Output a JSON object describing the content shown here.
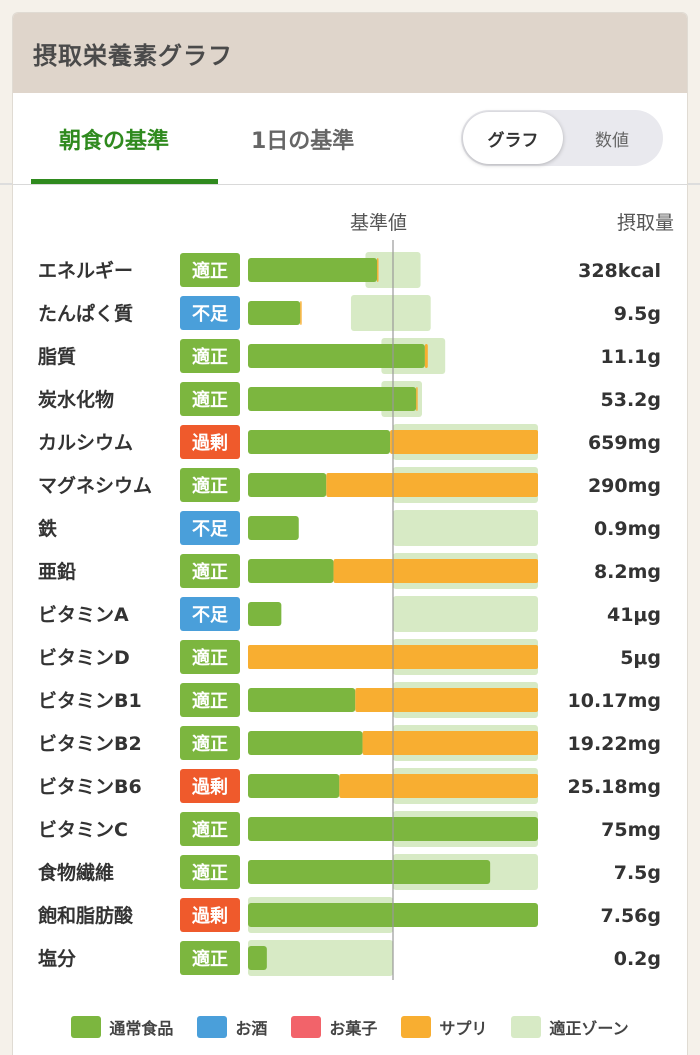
{
  "header": {
    "title": "摂取栄養素グラフ"
  },
  "tabs": [
    {
      "label": "朝食の基準",
      "active": true
    },
    {
      "label": "1日の基準",
      "active": false
    }
  ],
  "view_toggle": {
    "options": [
      "グラフ",
      "数値"
    ],
    "selected": "グラフ"
  },
  "colors": {
    "food": "#7cb63f",
    "alcohol": "#4a9fda",
    "snack": "#f2636a",
    "supplement": "#f8ae31",
    "zone": "#d7eac5",
    "accent": "#2f8a1e",
    "badge_ok": "#7cb63f",
    "badge_low": "#4a9fda",
    "badge_high": "#ef5a2c"
  },
  "chart_data": {
    "type": "bar",
    "orientation": "horizontal",
    "stacked": true,
    "reference_label": "基準値",
    "value_column_label": "摂取量",
    "reference_percent": 100,
    "xlim": [
      0,
      200
    ],
    "series": [
      {
        "name": "通常食品",
        "color": "#7cb63f"
      },
      {
        "name": "お酒",
        "color": "#4a9fda"
      },
      {
        "name": "お菓子",
        "color": "#f2636a"
      },
      {
        "name": "サプリ",
        "color": "#f8ae31"
      },
      {
        "name": "適正ゾーン",
        "color": "#d7eac5"
      }
    ],
    "rows": [
      {
        "name": "エネルギー",
        "status": "適正",
        "status_type": "ok",
        "value_label": "328kcal",
        "food": 89,
        "supplement": 1,
        "zone": [
          81,
          119
        ]
      },
      {
        "name": "たんぱく質",
        "status": "不足",
        "status_type": "low",
        "value_label": "9.5g",
        "food": 36,
        "supplement": 1,
        "zone": [
          71,
          126
        ]
      },
      {
        "name": "脂質",
        "status": "適正",
        "status_type": "ok",
        "value_label": "11.1g",
        "food": 122,
        "supplement": 2,
        "zone": [
          92,
          136
        ]
      },
      {
        "name": "炭水化物",
        "status": "適正",
        "status_type": "ok",
        "value_label": "53.2g",
        "food": 116,
        "supplement": 1,
        "zone": [
          92,
          120
        ]
      },
      {
        "name": "カルシウム",
        "status": "過剰",
        "status_type": "high",
        "value_label": "659mg",
        "food": 98,
        "supplement": 102,
        "zone": [
          100,
          200
        ]
      },
      {
        "name": "マグネシウム",
        "status": "適正",
        "status_type": "ok",
        "value_label": "290mg",
        "food": 54,
        "supplement": 146,
        "zone": [
          100,
          200
        ]
      },
      {
        "name": "鉄",
        "status": "不足",
        "status_type": "low",
        "value_label": "0.9mg",
        "food": 35,
        "supplement": 0,
        "zone": [
          100,
          200
        ]
      },
      {
        "name": "亜鉛",
        "status": "適正",
        "status_type": "ok",
        "value_label": "8.2mg",
        "food": 59,
        "supplement": 141,
        "zone": [
          100,
          200
        ]
      },
      {
        "name": "ビタミンA",
        "status": "不足",
        "status_type": "low",
        "value_label": "41μg",
        "food": 23,
        "supplement": 0,
        "zone": [
          100,
          200
        ]
      },
      {
        "name": "ビタミンD",
        "status": "適正",
        "status_type": "ok",
        "value_label": "5μg",
        "food": 0,
        "supplement": 200,
        "zone": [
          100,
          200
        ]
      },
      {
        "name": "ビタミンB1",
        "status": "適正",
        "status_type": "ok",
        "value_label": "10.17mg",
        "food": 74,
        "supplement": 126,
        "zone": [
          100,
          200
        ]
      },
      {
        "name": "ビタミンB2",
        "status": "適正",
        "status_type": "ok",
        "value_label": "19.22mg",
        "food": 79,
        "supplement": 121,
        "zone": [
          100,
          200
        ]
      },
      {
        "name": "ビタミンB6",
        "status": "過剰",
        "status_type": "high",
        "value_label": "25.18mg",
        "food": 63,
        "supplement": 137,
        "zone": [
          100,
          200
        ]
      },
      {
        "name": "ビタミンC",
        "status": "適正",
        "status_type": "ok",
        "value_label": "75mg",
        "food": 200,
        "supplement": 0,
        "zone": [
          100,
          200
        ]
      },
      {
        "name": "食物繊維",
        "status": "適正",
        "status_type": "ok",
        "value_label": "7.5g",
        "food": 167,
        "supplement": 0,
        "zone": [
          100,
          200
        ]
      },
      {
        "name": "飽和脂肪酸",
        "status": "過剰",
        "status_type": "high",
        "value_label": "7.56g",
        "food": 200,
        "supplement": 0,
        "zone": [
          0,
          100
        ]
      },
      {
        "name": "塩分",
        "status": "適正",
        "status_type": "ok",
        "value_label": "0.2g",
        "food": 13,
        "supplement": 0,
        "zone": [
          0,
          100
        ]
      }
    ]
  }
}
